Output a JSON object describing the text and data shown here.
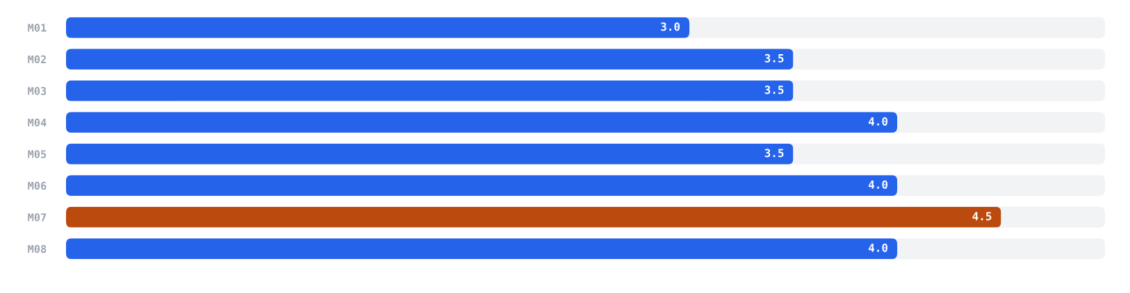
{
  "chart_data": {
    "type": "bar",
    "orientation": "horizontal",
    "categories": [
      "M01",
      "M02",
      "M03",
      "M04",
      "M05",
      "M06",
      "M07",
      "M08"
    ],
    "values": [
      3.0,
      3.5,
      3.5,
      4.0,
      3.5,
      4.0,
      4.5,
      4.0
    ],
    "value_labels": [
      "3.0",
      "3.5",
      "3.5",
      "4.0",
      "3.5",
      "4.0",
      "4.5",
      "4.0"
    ],
    "colors": [
      "#2563eb",
      "#2563eb",
      "#2563eb",
      "#2563eb",
      "#2563eb",
      "#2563eb",
      "#ba4a0e",
      "#2563eb"
    ],
    "xlim": [
      0,
      5
    ],
    "tick_labels": "y"
  }
}
